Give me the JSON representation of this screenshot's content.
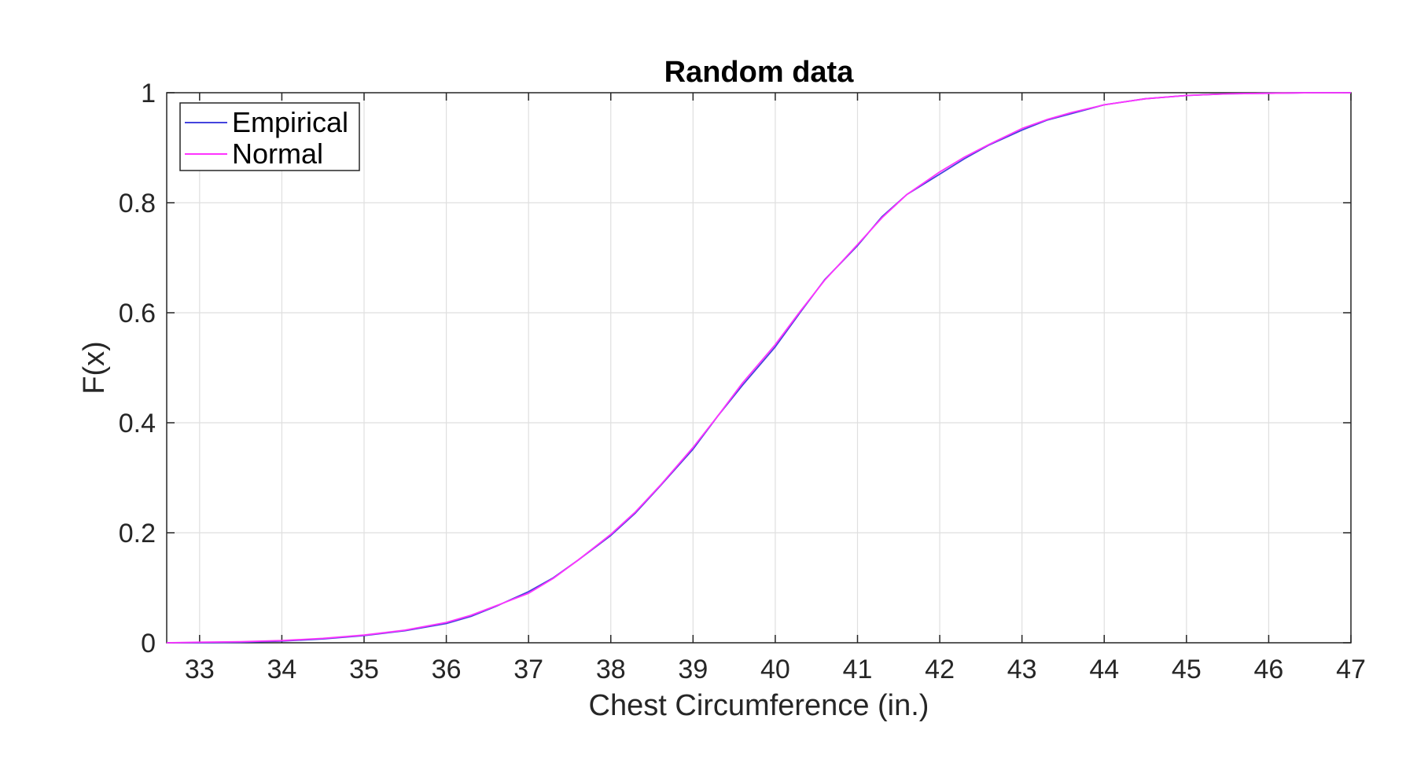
{
  "chart_data": {
    "type": "line",
    "title": "Random data",
    "xlabel": "Chest Circumference (in.)",
    "ylabel": "F(x)",
    "xlim": [
      32.6,
      47
    ],
    "ylim": [
      0,
      1
    ],
    "xticks": [
      33,
      34,
      35,
      36,
      37,
      38,
      39,
      40,
      41,
      42,
      43,
      44,
      45,
      46,
      47
    ],
    "yticks": [
      0,
      0.2,
      0.4,
      0.6,
      0.8,
      1
    ],
    "ytick_labels": [
      "0",
      "0.2",
      "0.4",
      "0.6",
      "0.8",
      "1"
    ],
    "grid": true,
    "legend_position": "top-left",
    "series": [
      {
        "name": "Empirical",
        "color": "#4444dd",
        "x": [
          32.6,
          33.0,
          33.5,
          34.0,
          34.5,
          35.0,
          35.5,
          36.0,
          36.3,
          36.6,
          37.0,
          37.3,
          37.6,
          38.0,
          38.3,
          38.6,
          39.0,
          39.3,
          39.6,
          40.0,
          40.3,
          40.6,
          41.0,
          41.3,
          41.6,
          42.0,
          42.3,
          42.6,
          43.0,
          43.3,
          43.6,
          44.0,
          44.5,
          45.0,
          45.5,
          46.0,
          46.5,
          47.0
        ],
        "y": [
          0.0,
          0.0,
          0.001,
          0.003,
          0.007,
          0.013,
          0.022,
          0.035,
          0.048,
          0.066,
          0.093,
          0.118,
          0.15,
          0.195,
          0.236,
          0.285,
          0.352,
          0.412,
          0.468,
          0.538,
          0.6,
          0.66,
          0.722,
          0.775,
          0.815,
          0.852,
          0.88,
          0.905,
          0.932,
          0.95,
          0.962,
          0.978,
          0.989,
          0.995,
          0.998,
          0.999,
          1.0,
          1.0
        ]
      },
      {
        "name": "Normal",
        "color": "#ff33ff",
        "x": [
          32.6,
          33.0,
          33.5,
          34.0,
          34.5,
          35.0,
          35.5,
          36.0,
          36.3,
          36.6,
          37.0,
          37.3,
          37.6,
          38.0,
          38.3,
          38.6,
          39.0,
          39.3,
          39.6,
          40.0,
          40.3,
          40.6,
          41.0,
          41.3,
          41.6,
          42.0,
          42.3,
          42.6,
          43.0,
          43.3,
          43.6,
          44.0,
          44.5,
          45.0,
          45.5,
          46.0,
          46.5,
          47.0
        ],
        "y": [
          0.0,
          0.001,
          0.002,
          0.004,
          0.008,
          0.014,
          0.023,
          0.037,
          0.05,
          0.067,
          0.09,
          0.117,
          0.15,
          0.197,
          0.238,
          0.286,
          0.355,
          0.412,
          0.472,
          0.542,
          0.602,
          0.659,
          0.724,
          0.773,
          0.815,
          0.856,
          0.883,
          0.906,
          0.935,
          0.951,
          0.964,
          0.978,
          0.989,
          0.995,
          0.998,
          0.999,
          1.0,
          1.0
        ]
      }
    ]
  }
}
